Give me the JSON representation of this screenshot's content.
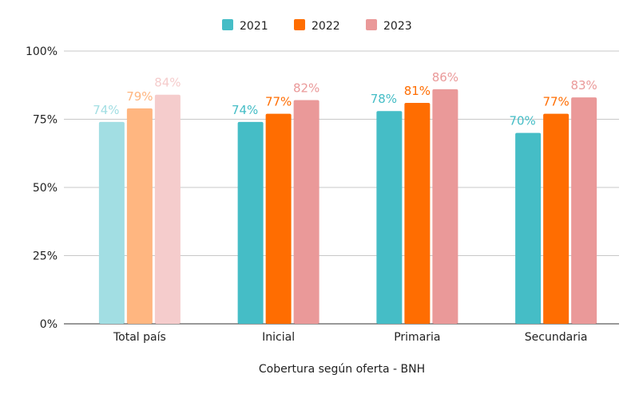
{
  "chart_data": {
    "type": "bar",
    "title": "",
    "xlabel": "Cobertura según oferta - BNH",
    "ylabel": "",
    "ylim": [
      0,
      100
    ],
    "yticks": [
      "0%",
      "25%",
      "50%",
      "75%",
      "100%"
    ],
    "ytick_values": [
      0,
      25,
      50,
      75,
      100
    ],
    "grid": true,
    "legend_position": "top",
    "categories": [
      "Total país",
      "Inicial",
      "Primaria",
      "Secundaria"
    ],
    "highlight_note_category_faded": "Total país",
    "series": [
      {
        "name": "2021",
        "color": "#45BDC6",
        "faded_color": "#A2DEE3",
        "values": [
          74,
          74,
          78,
          70
        ],
        "labels": [
          "74%",
          "74%",
          "78%",
          "70%"
        ]
      },
      {
        "name": "2022",
        "color": "#FF6D01",
        "faded_color": "#FFB680",
        "values": [
          79,
          77,
          81,
          77
        ],
        "labels": [
          "79%",
          "77%",
          "81%",
          "77%"
        ]
      },
      {
        "name": "2023",
        "color": "#EA9999",
        "faded_color": "#F5CCCC",
        "values": [
          84,
          82,
          86,
          83
        ],
        "labels": [
          "84%",
          "82%",
          "86%",
          "83%"
        ]
      }
    ]
  }
}
